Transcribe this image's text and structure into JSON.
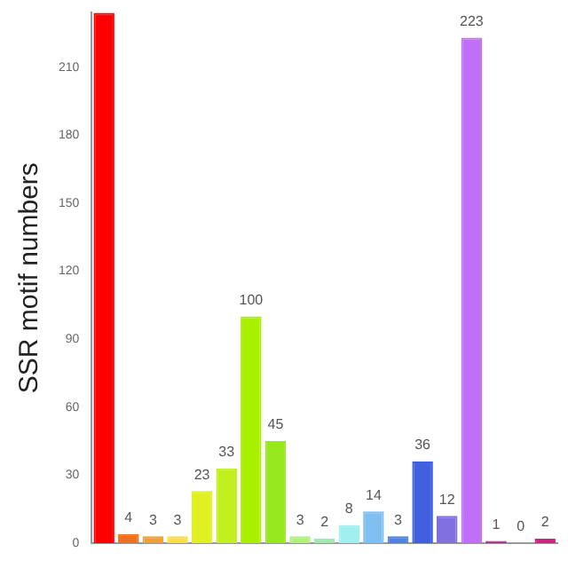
{
  "chart_data": {
    "type": "bar",
    "ylabel": "SSR motif numbers",
    "categories": [
      null,
      null,
      null,
      null,
      null,
      null,
      null,
      null,
      null,
      null,
      null,
      null,
      null,
      null,
      null,
      null,
      null,
      null,
      null
    ],
    "values": [
      234,
      4,
      3,
      3,
      23,
      33,
      100,
      45,
      3,
      2,
      8,
      14,
      3,
      36,
      12,
      223,
      1,
      0,
      2
    ],
    "value_labels": [
      null,
      "4",
      "3",
      "3",
      "23",
      "33",
      "100",
      "45",
      "3",
      "2",
      "8",
      "14",
      "3",
      "36",
      "12",
      "223",
      "1",
      "0",
      "2"
    ],
    "colors": [
      "#ff0000",
      "#f07020",
      "#f0a030",
      "#f8e040",
      "#e0f020",
      "#c0f020",
      "#a8f000",
      "#98e820",
      "#b0f080",
      "#a0e8b0",
      "#a0f0f0",
      "#80c0f0",
      "#5080e0",
      "#4060e0",
      "#8070e0",
      "#c070f8",
      "#a03080",
      "#c03070",
      "#d02080"
    ],
    "ylim": [
      0,
      234
    ],
    "yticks": [
      0,
      30,
      60,
      90,
      120,
      150,
      180,
      210
    ],
    "grid": false,
    "legend": false
  }
}
